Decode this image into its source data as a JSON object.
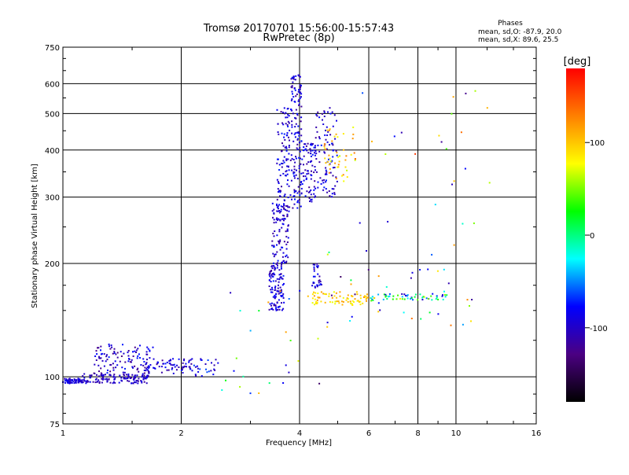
{
  "chart_data": {
    "type": "scatter",
    "title": "Tromsø 20170701 15:56:00-15:57:43",
    "subtitle": "RwPretec (8p)",
    "xlabel": "Frequency [MHz]",
    "ylabel": "Stationary phase Virtual Height [km]",
    "x_scale": "log",
    "y_scale": "log",
    "xlim": [
      1,
      16
    ],
    "ylim": [
      75,
      750
    ],
    "x_ticks": [
      1,
      2,
      4,
      6,
      8,
      10,
      16
    ],
    "y_ticks": [
      75,
      100,
      200,
      300,
      400,
      500,
      600,
      750
    ],
    "grid": true,
    "stats": {
      "heading": "Phases",
      "line_o": "mean, sd,O: -87.9, 20.0",
      "line_x": "mean, sd,X:  89.6, 25.5"
    },
    "colorbar": {
      "unit": "[deg]",
      "range": [
        -180,
        180
      ],
      "ticks": [
        -100,
        0,
        100
      ],
      "colors": [
        "#000000",
        "#4b0082",
        "#0000ff",
        "#00ffff",
        "#00ff00",
        "#ffff00",
        "#ff8000",
        "#ff0000"
      ]
    },
    "point_clusters": [
      {
        "x": [
          1.0,
          1.12
        ],
        "y": [
          96,
          99
        ],
        "phase": [
          -110,
          -80
        ],
        "n": 60
      },
      {
        "x": [
          1.12,
          1.65
        ],
        "y": [
          96,
          102
        ],
        "phase": [
          -120,
          -80
        ],
        "n": 130
      },
      {
        "x": [
          1.2,
          1.7
        ],
        "y": [
          102,
          122
        ],
        "phase": [
          -130,
          -70
        ],
        "n": 110
      },
      {
        "x": [
          1.6,
          2.15
        ],
        "y": [
          102,
          112
        ],
        "phase": [
          -120,
          -70
        ],
        "n": 70
      },
      {
        "x": [
          2.15,
          2.5
        ],
        "y": [
          100,
          112
        ],
        "phase": [
          -110,
          -60
        ],
        "n": 25
      },
      {
        "x": [
          3.35,
          3.65
        ],
        "y": [
          150,
          200
        ],
        "phase": [
          -120,
          -70
        ],
        "n": 120
      },
      {
        "x": [
          3.4,
          3.75
        ],
        "y": [
          200,
          290
        ],
        "phase": [
          -120,
          -70
        ],
        "n": 90
      },
      {
        "x": [
          3.5,
          3.8
        ],
        "y": [
          260,
          520
        ],
        "phase": [
          -120,
          -70
        ],
        "n": 110
      },
      {
        "x": [
          3.8,
          4.05
        ],
        "y": [
          280,
          640
        ],
        "phase": [
          -120,
          -70
        ],
        "n": 140
      },
      {
        "x": [
          4.05,
          4.4
        ],
        "y": [
          290,
          420
        ],
        "phase": [
          -120,
          -70
        ],
        "n": 80
      },
      {
        "x": [
          4.4,
          5.0
        ],
        "y": [
          300,
          520
        ],
        "phase": [
          -120,
          -70
        ],
        "n": 90
      },
      {
        "x": [
          4.3,
          4.55
        ],
        "y": [
          170,
          200
        ],
        "phase": [
          -120,
          -70
        ],
        "n": 30
      },
      {
        "x": [
          4.6,
          5.6
        ],
        "y": [
          330,
          460
        ],
        "phase": [
          60,
          130
        ],
        "n": 45
      },
      {
        "x": [
          4.2,
          6.0
        ],
        "y": [
          155,
          168
        ],
        "phase": [
          70,
          120
        ],
        "n": 80
      },
      {
        "x": [
          6.0,
          9.5
        ],
        "y": [
          160,
          166
        ],
        "phase": [
          -110,
          60
        ],
        "n": 55
      },
      {
        "x": [
          4.5,
          11.5
        ],
        "y": [
          130,
          230
        ],
        "phase": [
          -140,
          140
        ],
        "n": 45
      },
      {
        "x": [
          2.5,
          4.5
        ],
        "y": [
          90,
          170
        ],
        "phase": [
          -140,
          140
        ],
        "n": 25
      },
      {
        "x": [
          5.5,
          12.5
        ],
        "y": [
          250,
          600
        ],
        "phase": [
          -140,
          160
        ],
        "n": 25
      }
    ]
  }
}
